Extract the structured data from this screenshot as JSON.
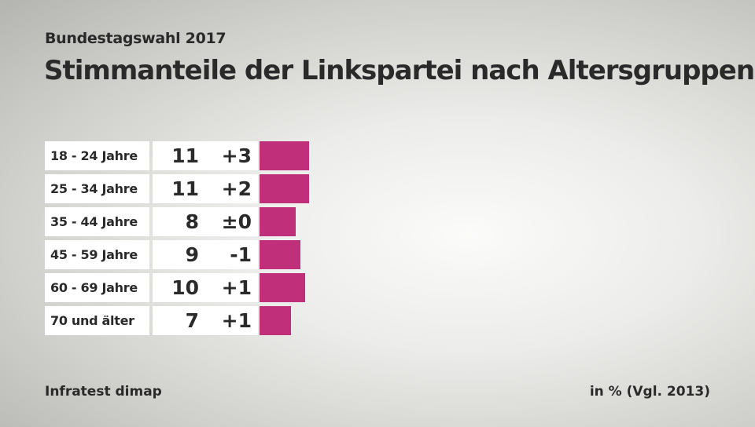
{
  "chart_data": {
    "type": "bar",
    "subtitle": "Bundestagswahl 2017",
    "title": "Stimmanteile der Linkspartei nach Altersgruppen",
    "categories": [
      "18 - 24 Jahre",
      "25 - 34 Jahre",
      "35 - 44 Jahre",
      "45 - 59 Jahre",
      "60 - 69 Jahre",
      "70 und älter"
    ],
    "values": [
      11,
      11,
      8,
      9,
      10,
      7
    ],
    "diff_labels": [
      "+3",
      "+2",
      "±0",
      "-1",
      "+1",
      "+1"
    ],
    "source": "Infratest dimap",
    "unit": "in % (Vgl. 2013)",
    "bar_color": "#c0307a"
  }
}
